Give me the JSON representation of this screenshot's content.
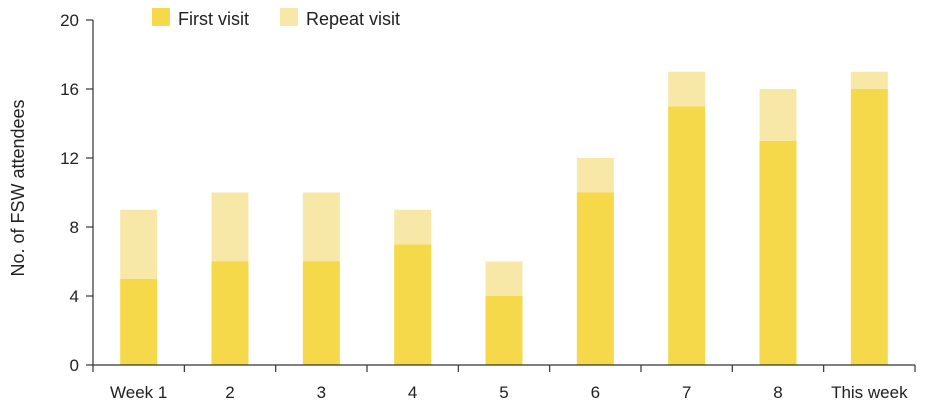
{
  "chart_data": {
    "type": "bar",
    "stacked": true,
    "title": "",
    "xlabel": "",
    "ylabel": "No. of FSW attendees",
    "ylim": [
      0,
      20
    ],
    "yticks": [
      0,
      4,
      8,
      12,
      16,
      20
    ],
    "ytick_labels": [
      "0",
      "4",
      "8",
      "12",
      "16",
      "20"
    ],
    "categories": [
      "Week 1",
      "2",
      "3",
      "4",
      "5",
      "6",
      "7",
      "8",
      "This week"
    ],
    "series": [
      {
        "name": "First visit",
        "color": "#f6d94a",
        "values": [
          5,
          6,
          6,
          7,
          4,
          10,
          15,
          13,
          16
        ]
      },
      {
        "name": "Repeat visit",
        "color": "#f8e8a8",
        "values": [
          4,
          4,
          4,
          2,
          2,
          2,
          2,
          3,
          1
        ]
      }
    ],
    "legend": {
      "position": "top-left"
    },
    "grid": false
  }
}
